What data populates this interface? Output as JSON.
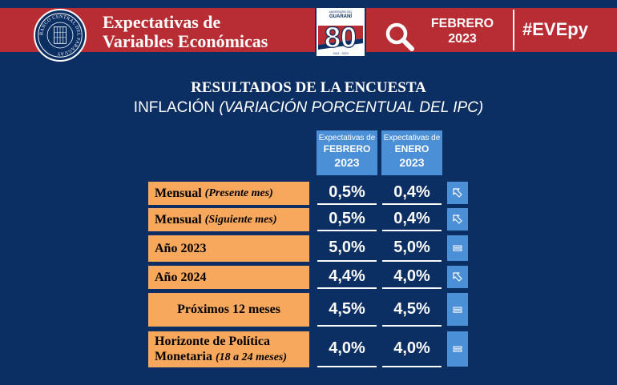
{
  "header": {
    "seal_text": "BANCO CENTRAL DEL PARAGUAY",
    "title_line1": "Expectativas de",
    "title_line2": "Variables Económicas",
    "anniversary_top": "ANIVERSARIO DEL",
    "anniversary_brand": "GUARANÍ",
    "anniversary_number": "80",
    "anniversary_years": "1943 - 2023",
    "period_month": "FEBRERO",
    "period_year": "2023",
    "hashtag": "#EVEpy"
  },
  "heading": {
    "title": "RESULTADOS DE LA ENCUESTA",
    "subtitle_main": "INFLACIÓN",
    "subtitle_italic": "(VARIACIÓN PORCENTUAL DEL IPC)"
  },
  "columns": [
    {
      "caption": "Expectativas de",
      "month": "FEBRERO",
      "year": "2023"
    },
    {
      "caption": "Expectativas de",
      "month": "ENERO",
      "year": "2023"
    }
  ],
  "rows": [
    {
      "label": "Mensual",
      "label_italic": "(Presente mes)",
      "feb": "0,5%",
      "ene": "0,4%",
      "trend": "up-arrow-icon"
    },
    {
      "label": "Mensual",
      "label_italic": "(Siguiente mes)",
      "feb": "0,5%",
      "ene": "0,4%",
      "trend": "up-arrow-icon"
    },
    {
      "label": "Año 2023",
      "label_italic": "",
      "feb": "5,0%",
      "ene": "5,0%",
      "trend": "equal-icon"
    },
    {
      "label": "Año 2024",
      "label_italic": "",
      "feb": "4,4%",
      "ene": "4,0%",
      "trend": "up-arrow-icon"
    },
    {
      "label": "Próximos 12 meses",
      "label_italic": "",
      "feb": "4,5%",
      "ene": "4,5%",
      "trend": "equal-icon"
    },
    {
      "label_line1": "Horizonte de Política",
      "label_line2": "Monetaria",
      "label_italic": "(18 a 24 meses)",
      "feb": "4,0%",
      "ene": "4,0%",
      "trend": "equal-icon"
    }
  ],
  "colors": {
    "background": "#0b2e63",
    "banner_red": "#b72d33",
    "label_orange": "#f7a85d",
    "accent_blue": "#4b8fd6"
  }
}
